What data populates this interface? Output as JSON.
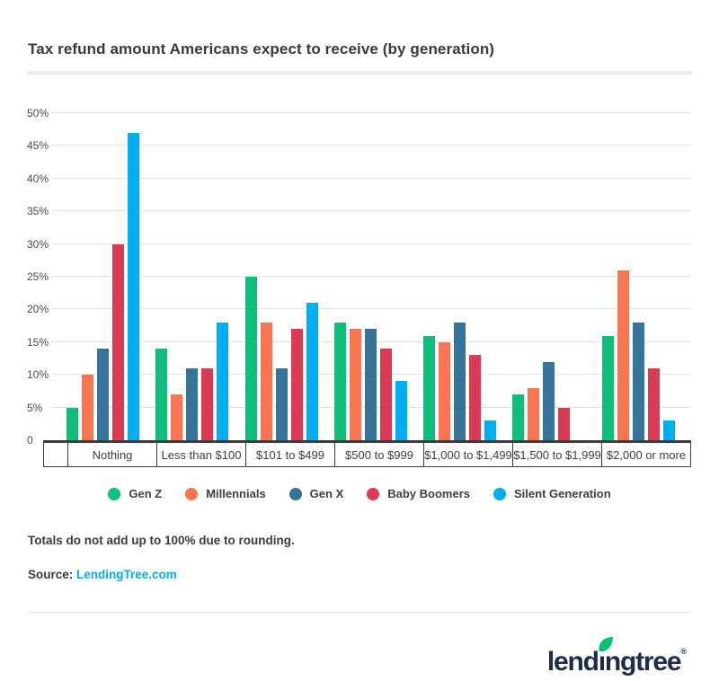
{
  "header": {
    "title": "Tax refund amount Americans expect to receive (by generation)"
  },
  "chart_data": {
    "type": "bar",
    "title": "Tax refund amount Americans expect to receive (by generation)",
    "categories": [
      "Nothing",
      "Less than $100",
      "$101 to $499",
      "$500 to $999",
      "$1,000 to $1,499",
      "$1,500 to $1,999",
      "$2,000 or more"
    ],
    "series": [
      {
        "name": "Gen Z",
        "color": "#0ebe7a",
        "values": [
          5,
          14,
          25,
          18,
          16,
          7,
          16
        ]
      },
      {
        "name": "Millennials",
        "color": "#fb7452",
        "values": [
          10,
          7,
          18,
          17,
          15,
          8,
          26
        ]
      },
      {
        "name": "Gen X",
        "color": "#36739b",
        "values": [
          14,
          11,
          11,
          17,
          18,
          12,
          18
        ]
      },
      {
        "name": "Baby Boomers",
        "color": "#db3a55",
        "values": [
          30,
          11,
          17,
          14,
          13,
          5,
          11
        ]
      },
      {
        "name": "Silent Generation",
        "color": "#00aeef",
        "values": [
          47,
          18,
          21,
          9,
          3,
          0,
          3
        ]
      }
    ],
    "xlabel": "",
    "ylabel": "",
    "ylim": [
      0,
      50
    ],
    "ytick_step": 5,
    "ytick_labels": [
      "0",
      "5%",
      "10%",
      "15%",
      "20%",
      "25%",
      "30%",
      "35%",
      "40%",
      "45%",
      "50%"
    ],
    "grid": true,
    "legend_position": "bottom"
  },
  "notes": {
    "rounding": "Totals do not add up to 100% due to rounding.",
    "source_label": "Source:",
    "source_link": "LendingTree.com"
  },
  "logo": {
    "part1": "lend",
    "dotless_i": "ı",
    "part2": "ngtree",
    "registered": "®",
    "text_color": "#1e2c49",
    "leaf_color": "#00c26e"
  }
}
